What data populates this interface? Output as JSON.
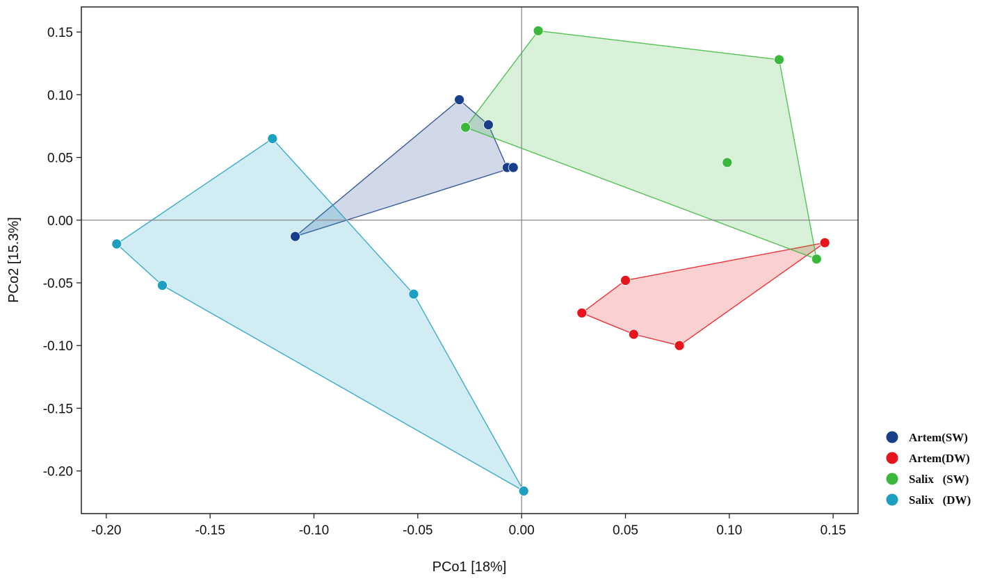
{
  "chart_data": {
    "type": "scatter",
    "title": "",
    "xlabel": "PCo1 [18%]",
    "ylabel": "PCo2 [15.3%]",
    "xlim": [
      -0.212,
      0.162
    ],
    "ylim": [
      -0.234,
      0.17
    ],
    "xticks": [
      -0.2,
      -0.15,
      -0.1,
      -0.05,
      0.0,
      0.05,
      0.1,
      0.15
    ],
    "xtick_labels": [
      "-0.20",
      "-0.15",
      "-0.10",
      "-0.05",
      "0.00",
      "0.05",
      "0.10",
      "0.15"
    ],
    "yticks": [
      0.15,
      0.1,
      0.05,
      0.0,
      -0.05,
      -0.1,
      -0.15,
      -0.2
    ],
    "ytick_labels": [
      "0.15",
      "0.10",
      "0.05",
      "0.00",
      "-0.05",
      "-0.10",
      "-0.15",
      "-0.20"
    ],
    "reference_lines": {
      "x": 0.0,
      "y": 0.0
    },
    "grid": false,
    "legend_position": "right-bottom",
    "series": [
      {
        "name": "Artem(SW)",
        "color": "#173f8a",
        "points": [
          {
            "x": -0.03,
            "y": 0.096
          },
          {
            "x": -0.016,
            "y": 0.076
          },
          {
            "x": -0.007,
            "y": 0.042
          },
          {
            "x": -0.004,
            "y": 0.042
          },
          {
            "x": -0.109,
            "y": -0.013
          }
        ],
        "hull": [
          2,
          3,
          4,
          0,
          1
        ]
      },
      {
        "name": "Artem(DW)",
        "color": "#e8141b",
        "points": [
          {
            "x": 0.146,
            "y": -0.018
          },
          {
            "x": 0.05,
            "y": -0.048
          },
          {
            "x": 0.029,
            "y": -0.074
          },
          {
            "x": 0.054,
            "y": -0.091
          },
          {
            "x": 0.076,
            "y": -0.1
          }
        ],
        "hull": [
          0,
          1,
          2,
          3,
          4
        ]
      },
      {
        "name": "Salix   (SW)",
        "color": "#3bb73b",
        "points": [
          {
            "x": 0.008,
            "y": 0.151
          },
          {
            "x": 0.124,
            "y": 0.128
          },
          {
            "x": -0.027,
            "y": 0.074
          },
          {
            "x": 0.099,
            "y": 0.046
          },
          {
            "x": 0.142,
            "y": -0.031
          }
        ],
        "hull": [
          0,
          1,
          4,
          2
        ]
      },
      {
        "name": "Salix   (DW)",
        "color": "#1c9fc1",
        "points": [
          {
            "x": -0.12,
            "y": 0.065
          },
          {
            "x": -0.195,
            "y": -0.019
          },
          {
            "x": -0.173,
            "y": -0.052
          },
          {
            "x": -0.052,
            "y": -0.059
          },
          {
            "x": 0.001,
            "y": -0.216
          }
        ],
        "hull": [
          0,
          3,
          4,
          2,
          1
        ]
      }
    ]
  }
}
